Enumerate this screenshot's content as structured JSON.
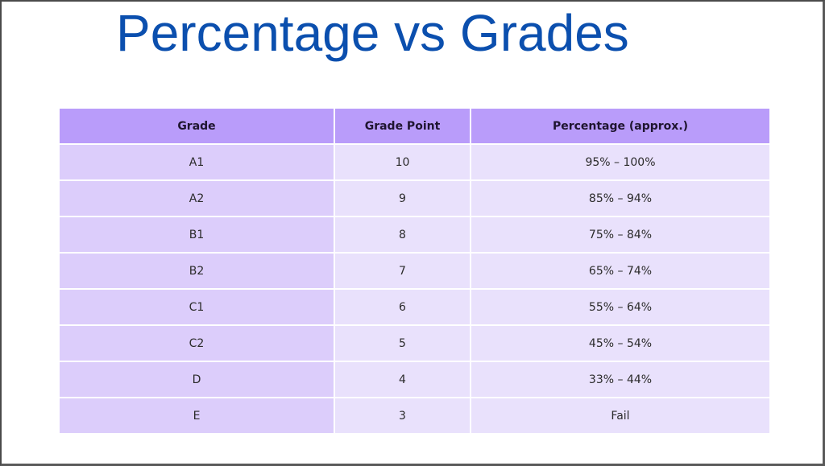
{
  "slide": {
    "title": "Percentage vs Grades",
    "colors": {
      "title": "#0b4fae",
      "header_bg": "#b99cfa",
      "first_col_bg": "#dccdfb",
      "cell_bg": "#e9e1fc"
    }
  },
  "table": {
    "headers": [
      "Grade",
      "Grade Point",
      "Percentage (approx.)"
    ],
    "rows": [
      [
        "A1",
        "10",
        "95% – 100%"
      ],
      [
        "A2",
        "9",
        "85% – 94%"
      ],
      [
        "B1",
        "8",
        "75% – 84%"
      ],
      [
        "B2",
        "7",
        "65% – 74%"
      ],
      [
        "C1",
        "6",
        "55% – 64%"
      ],
      [
        "C2",
        "5",
        "45% – 54%"
      ],
      [
        "D",
        "4",
        "33% – 44%"
      ],
      [
        "E",
        "3",
        "Fail"
      ]
    ]
  }
}
